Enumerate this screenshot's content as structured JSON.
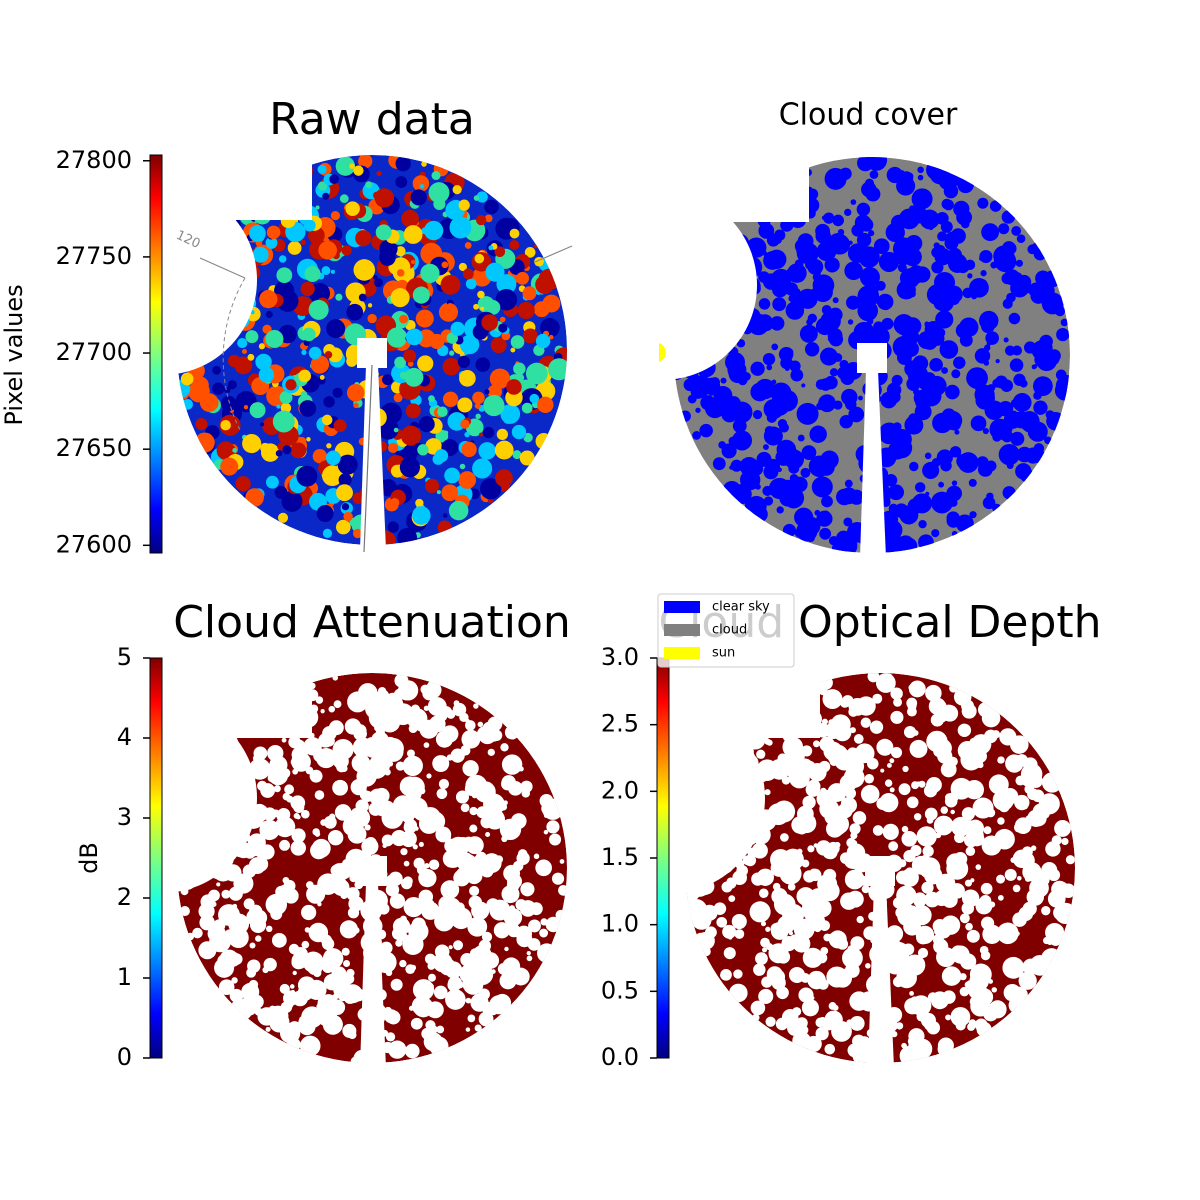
{
  "chart_data": [
    {
      "type": "image",
      "title": "Raw data",
      "ylabel": "Pixel values",
      "colormap": "jet",
      "ylim": [
        27596,
        27803
      ],
      "yticks": [
        27600,
        27650,
        27700,
        27750,
        27800
      ],
      "annotation": "120"
    },
    {
      "type": "classification",
      "title": "Cloud cover",
      "series": [
        {
          "name": "clear sky",
          "color": "#0000ff"
        },
        {
          "name": "cloud",
          "color": "#808080"
        },
        {
          "name": "sun",
          "color": "#ffff00"
        }
      ]
    },
    {
      "type": "image",
      "title": "Cloud Attenuation",
      "ylabel": "dB",
      "colormap": "jet",
      "ylim": [
        0,
        5
      ],
      "yticks": [
        0,
        1,
        2,
        3,
        4,
        5
      ]
    },
    {
      "type": "image",
      "title": "Cloud Optical Depth",
      "colormap": "jet",
      "ylim": [
        0,
        3
      ],
      "yticks": [
        {
          "value": 0,
          "label": "0.0"
        },
        0.5,
        {
          "value": 1,
          "label": "1.0"
        },
        1.5,
        {
          "value": 2,
          "label": "2.0"
        },
        2.5,
        {
          "value": 3,
          "label": "3.0"
        }
      ]
    }
  ]
}
